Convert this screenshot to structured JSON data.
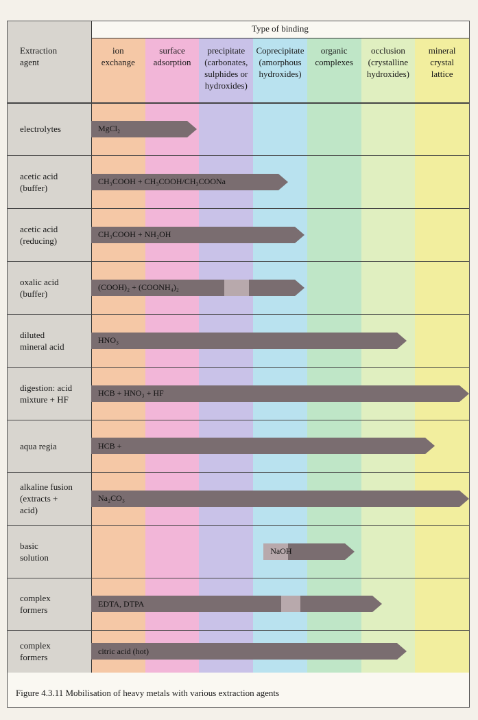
{
  "header": {
    "type_of_binding": "Type of binding",
    "extraction_agent": "Extraction\nagent"
  },
  "columns": [
    {
      "label": "ion\nexchange",
      "color": "#f5c8a6"
    },
    {
      "label": "surface\nadsorption",
      "color": "#f2b6d8"
    },
    {
      "label": "precipitate\n(carbonates,\nsulphides or\nhydroxides)",
      "color": "#c9c2e8"
    },
    {
      "label": "Coprecipitate\n(amorphous\nhydroxides)",
      "color": "#b9e2ef"
    },
    {
      "label": "organic\ncomplexes",
      "color": "#bfe6c7"
    },
    {
      "label": "occlusion\n(crystalline\nhydroxides)",
      "color": "#e0efc0"
    },
    {
      "label": "mineral\ncrystal\nlattice",
      "color": "#f2ee9e"
    }
  ],
  "rows": [
    {
      "agent": "electrolytes",
      "bar_text": "MgCl₂",
      "extent": 0.28
    },
    {
      "agent": "acetic acid\n(buffer)",
      "bar_text": "CH₃COOH + CH₃COOH/CH₃COONa",
      "extent": 0.52
    },
    {
      "agent": "acetic acid\n(reducing)",
      "bar_text": "CH₃COOH + NH₂OH",
      "extent": 0.565
    },
    {
      "agent": "oxalic acid\n(buffer)",
      "bar_text": "(COOH)₂ + (COONH₄)₂",
      "extent": 0.565,
      "light": [
        0.352,
        0.418
      ]
    },
    {
      "agent": "diluted\nmineral acid",
      "bar_text": "HNO₃",
      "extent": 0.835
    },
    {
      "agent": "digestion: acid\nmixture + HF",
      "bar_text": "HCB + HNO₃ + HF",
      "extent": 1.0
    },
    {
      "agent": "aqua regia",
      "bar_text": "HCB +",
      "extent": 0.91
    },
    {
      "agent": "alkaline fusion\n(extracts +\nacid)",
      "bar_text": "Na₂CO₃",
      "extent": 1.0
    },
    {
      "agent": "basic\nsolution",
      "bar_text": "NaOH",
      "extent": 0.697,
      "start": 0.456,
      "light": [
        0.456,
        0.52
      ]
    },
    {
      "agent": "complex\nformers",
      "bar_text": "EDTA, DTPA",
      "extent": 0.77,
      "light": [
        0.503,
        0.554
      ]
    },
    {
      "agent": "complex\nformers",
      "bar_text": "citric acid (hot)",
      "extent": 0.835
    }
  ],
  "caption": "Figure 4.3.11 Mobilisation of heavy metals with various extraction agents"
}
